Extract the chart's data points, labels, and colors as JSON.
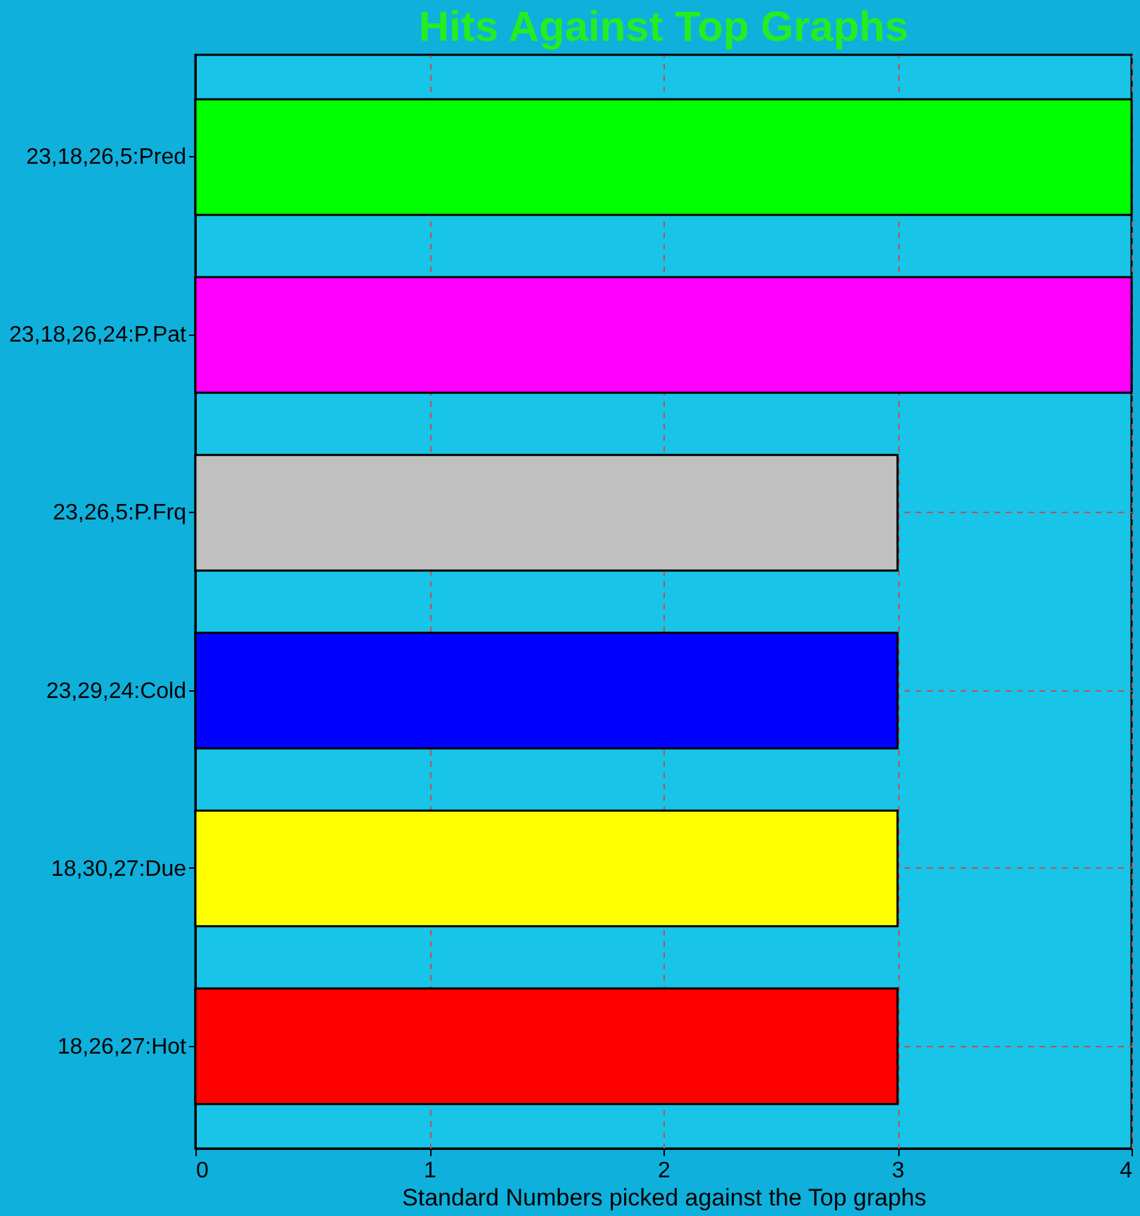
{
  "chart_data": {
    "type": "bar",
    "orientation": "horizontal",
    "title": "Hits Against Top Graphs",
    "xlabel": "Standard Numbers picked against the Top graphs",
    "categories": [
      "23,18,26,5:Pred",
      "23,18,26,24:P.Pat",
      "23,26,5:P.Frq",
      "23,29,24:Cold",
      "18,30,27:Due",
      "18,26,27:Hot"
    ],
    "values": [
      4,
      4,
      3,
      3,
      3,
      3
    ],
    "colors": [
      "#00ff00",
      "#ff00ff",
      "#c0c0c0",
      "#0000ff",
      "#ffff00",
      "#ff0000"
    ],
    "xlim": [
      0,
      4
    ],
    "xticks": [
      0,
      1,
      2,
      3,
      4
    ],
    "grid": true
  }
}
